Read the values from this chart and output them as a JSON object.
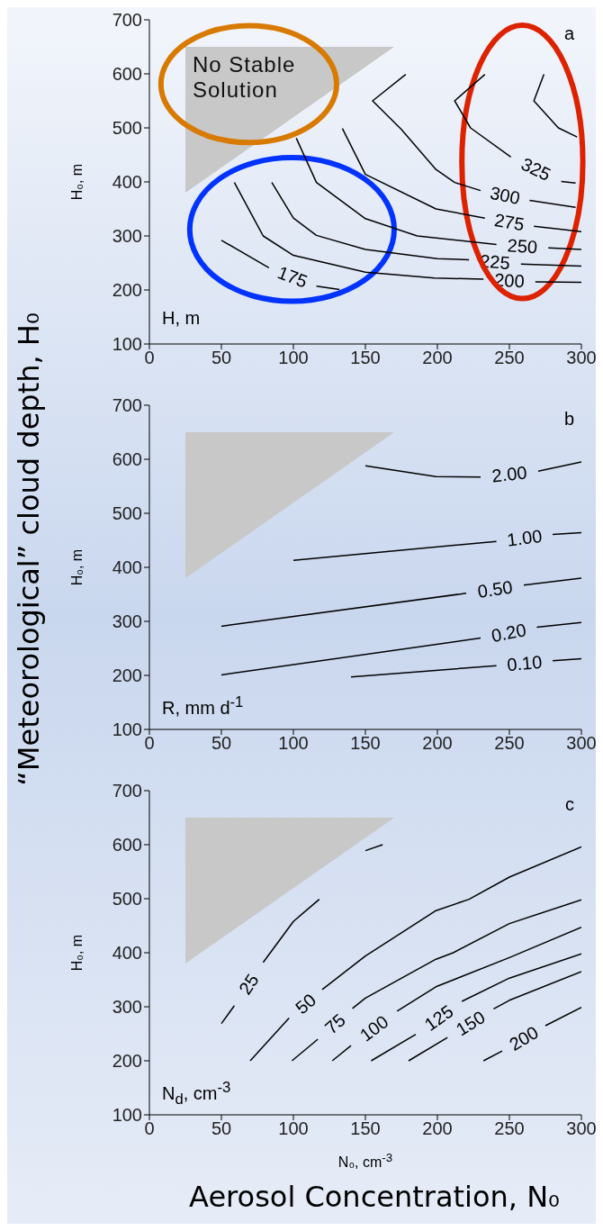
{
  "chart_data": [
    {
      "type": "line",
      "ylabel": "H₀, m",
      "xlim": [
        0,
        300
      ],
      "xticks": [
        0,
        50,
        100,
        150,
        200,
        250,
        300
      ],
      "ylim": [
        100,
        700
      ],
      "yticks": [
        100,
        200,
        300,
        400,
        500,
        600,
        700
      ],
      "legend": false,
      "grid": false,
      "annotations": [
        "a",
        "H, m",
        "No Stable Solution"
      ],
      "series": [
        {
          "name": "175",
          "color": "#000000",
          "x": [
            50,
            83,
            null,
            116,
            132
          ],
          "values": [
            292,
            241,
            null,
            207,
            201
          ]
        },
        {
          "name": "200",
          "color": "#000000",
          "x": [
            59,
            79,
            100,
            150,
            198,
            232,
            null,
            268,
            300
          ],
          "values": [
            399,
            300,
            264,
            233,
            222,
            220,
            null,
            215,
            214
          ]
        },
        {
          "name": "225",
          "color": "#000000",
          "x": [
            85,
            100,
            116,
            150,
            200,
            222,
            null,
            258,
            300
          ],
          "values": [
            399,
            333,
            301,
            275,
            258,
            256,
            null,
            248,
            244
          ]
        },
        {
          "name": "250",
          "color": "#000000",
          "x": [
            102,
            116,
            150,
            186,
            241,
            null,
            277,
            300
          ],
          "values": [
            481,
            399,
            332,
            300,
            284,
            null,
            278,
            275
          ]
        },
        {
          "name": "275",
          "color": "#000000",
          "x": [
            134,
            150,
            199,
            233,
            null,
            267,
            300
          ],
          "values": [
            499,
            414,
            350,
            333,
            null,
            318,
            308
          ]
        },
        {
          "name": "300",
          "color": "#000000",
          "x": [
            178,
            155,
            175,
            199,
            212,
            230,
            null,
            264,
            296
          ],
          "values": [
            599,
            550,
            497,
            423,
            399,
            384,
            null,
            366,
            353
          ]
        },
        {
          "name": "325",
          "color": "#000000",
          "x": [
            233,
            212,
            223,
            251,
            null,
            286,
            296
          ],
          "values": [
            599,
            550,
            500,
            446,
            null,
            401,
            398
          ]
        },
        {
          "color": "#000000",
          "x": [
            274,
            267,
            284,
            297
          ],
          "values": [
            599,
            550,
            500,
            483
          ]
        }
      ]
    },
    {
      "type": "line",
      "ylabel": "H₀, m",
      "xlim": [
        0,
        300
      ],
      "xticks": [
        0,
        50,
        100,
        150,
        200,
        250,
        300
      ],
      "ylim": [
        100,
        700
      ],
      "yticks": [
        100,
        200,
        300,
        400,
        500,
        600,
        700
      ],
      "legend": false,
      "grid": false,
      "annotations": [
        "b",
        "R, mm d$^{-1}$",
        "“Meteorological” cloud depth, H₀"
      ],
      "series": [
        {
          "name": "2.00",
          "color": "#000000",
          "x": [
            150,
            199,
            230,
            null,
            270,
            300
          ],
          "values": [
            588,
            568,
            567,
            null,
            578,
            595
          ]
        },
        {
          "name": "1.00",
          "color": "#000000",
          "x": [
            100,
            241,
            null,
            280,
            300
          ],
          "values": [
            413,
            448,
            null,
            461,
            464
          ]
        },
        {
          "name": "0.50",
          "color": "#000000",
          "x": [
            50,
            220,
            null,
            260,
            300
          ],
          "values": [
            291,
            352,
            null,
            367,
            380
          ]
        },
        {
          "name": "0.20",
          "color": "#000000",
          "x": [
            50,
            230,
            null,
            269,
            300
          ],
          "values": [
            201,
            269,
            null,
            289,
            298
          ]
        },
        {
          "name": "0.10",
          "color": "#000000",
          "x": [
            140,
            241,
            null,
            280,
            300
          ],
          "values": [
            197,
            218,
            null,
            227,
            231
          ]
        }
      ]
    },
    {
      "type": "line",
      "xlabel": "N₀, cm$^{-3}$",
      "ylabel": "H₀, m",
      "xlim": [
        0,
        300
      ],
      "xticks": [
        0,
        50,
        100,
        150,
        200,
        250,
        300
      ],
      "ylim": [
        100,
        700
      ],
      "yticks": [
        100,
        200,
        300,
        400,
        500,
        600,
        700
      ],
      "legend": false,
      "grid": false,
      "annotations": [
        "c",
        "N$_{d}$, cm$^{-3}$",
        "Aerosol Concentration, N₀"
      ],
      "series": [
        {
          "name": "25",
          "color": "#000000",
          "x": [
            50,
            59,
            null,
            79,
            100,
            118
          ],
          "values": [
            269,
            302,
            null,
            382,
            458,
            499
          ]
        },
        {
          "color": "#000000",
          "x": [
            150,
            162
          ],
          "values": [
            589,
            600
          ]
        },
        {
          "name": "50",
          "color": "#000000",
          "x": [
            70,
            97,
            null,
            120,
            150,
            199,
            222,
            250,
            300
          ],
          "values": [
            200,
            279,
            null,
            332,
            394,
            478,
            499,
            540,
            596
          ]
        },
        {
          "name": "75",
          "color": "#000000",
          "x": [
            99,
            117,
            null,
            141,
            150,
            199,
            211,
            250,
            300
          ],
          "values": [
            200,
            240,
            null,
            297,
            316,
            388,
            400,
            454,
            498
          ]
        },
        {
          "name": "100",
          "color": "#000000",
          "x": [
            127,
            140,
            null,
            172,
            199,
            250,
            300
          ],
          "values": [
            200,
            228,
            null,
            292,
            337,
            391,
            447
          ]
        },
        {
          "name": "125",
          "color": "#000000",
          "x": [
            154,
            185,
            null,
            217,
            250,
            300
          ],
          "values": [
            200,
            249,
            null,
            310,
            353,
            398
          ]
        },
        {
          "name": "150",
          "color": "#000000",
          "x": [
            180,
            207,
            null,
            239,
            250,
            300
          ],
          "values": [
            200,
            243,
            null,
            296,
            312,
            365
          ]
        },
        {
          "name": "200",
          "color": "#000000",
          "x": [
            232,
            245,
            null,
            275,
            300
          ],
          "values": [
            200,
            218,
            null,
            265,
            299
          ]
        }
      ]
    }
  ]
}
